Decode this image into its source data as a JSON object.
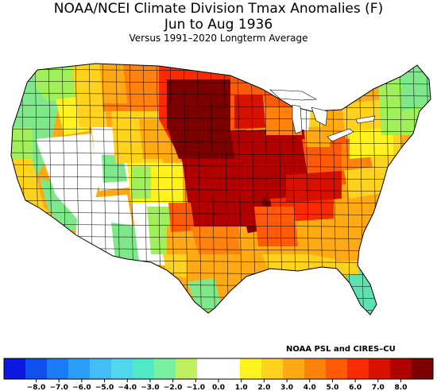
{
  "header": {
    "title_line1": "NOAA/NCEI Climate Division Tmax Anomalies (F)",
    "title_line2": "Jun to Aug 1936",
    "subtitle": "Versus 1991–2020 Longterm Average"
  },
  "credit": "NOAA PSL and CIRES–CU",
  "legend": {
    "tick_labels": [
      "−8.0",
      "−7.0",
      "−6.0",
      "−5.0",
      "−4.0",
      "−3.0",
      "−2.0",
      "−1.0",
      "0.0",
      "1.0",
      "2.0",
      "3.0",
      "4.0",
      "5.0",
      "6.0",
      "7.0",
      "8.0"
    ],
    "colors": [
      "#0b18e0",
      "#1050f0",
      "#1c7cf5",
      "#2c9ef8",
      "#42bdf7",
      "#50d6ee",
      "#50e8c6",
      "#78f0a0",
      "#c0f060",
      "#ffffff",
      "#ffffff",
      "#fff21e",
      "#ffd21e",
      "#ffaa14",
      "#ff820e",
      "#ff5a08",
      "#fa2a00",
      "#d71000",
      "#b00000",
      "#7c0000"
    ]
  },
  "anomaly_colors": {
    "near_zero": "#ffffff",
    "light_green": "#9ff05a",
    "green": "#7fe88a",
    "seafoam": "#5fe0b0",
    "yellow": "#fff21e",
    "gold": "#ffd21e",
    "orange": "#ffaa14",
    "dark_orange": "#ff820e",
    "orange_red": "#ff5a08",
    "red": "#fa2a00",
    "dark_red": "#b00000",
    "maroon": "#7c0000"
  }
}
